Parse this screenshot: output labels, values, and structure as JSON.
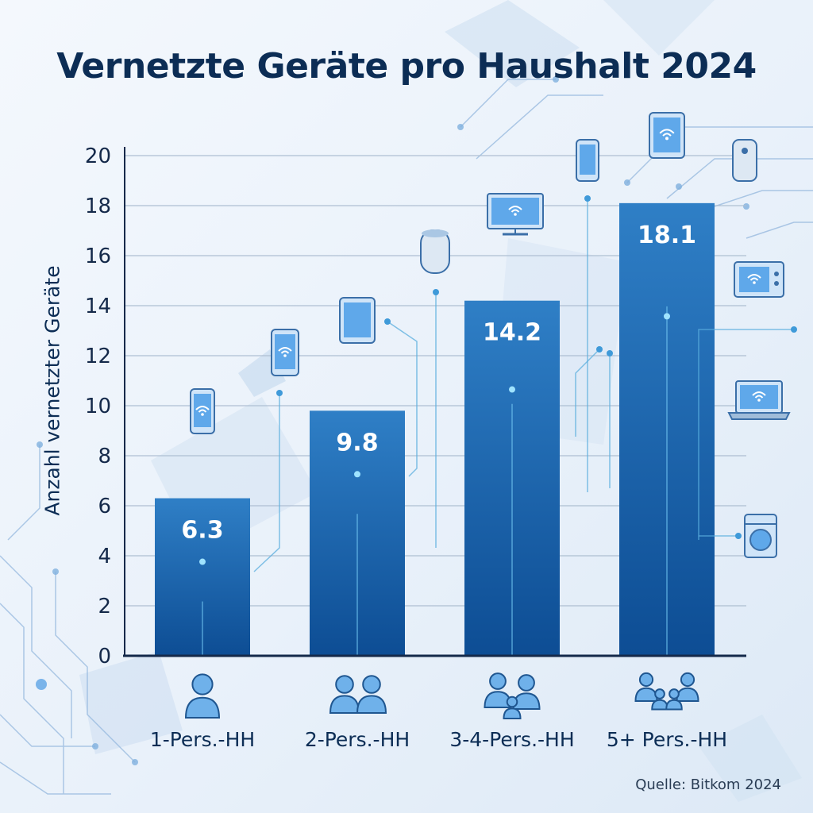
{
  "chart_data": {
    "type": "bar",
    "title": "Vernetzte Geräte pro Haushalt 2024",
    "ylabel": "Anzahl vernetzter Geräte",
    "xlabel": "",
    "categories": [
      "1-Pers.-HH",
      "2-Pers.-HH",
      "3-4-Pers.-HH",
      "5+ Pers.-HH"
    ],
    "values": [
      6.3,
      9.8,
      14.2,
      18.1
    ],
    "value_labels": [
      "6.3",
      "9.8",
      "14.2",
      "18.1"
    ],
    "ylim": [
      0,
      20
    ],
    "yticks": [
      0,
      2,
      4,
      6,
      8,
      10,
      12,
      14,
      16,
      18,
      20
    ],
    "grid": true,
    "legend": "none",
    "colors": {
      "bar_top": "#2f7fc6",
      "bar_bottom": "#0d4d94",
      "title": "#0c2d55",
      "grid": "#aebfd2",
      "icon": "#3d8ed6"
    },
    "category_icons": [
      "single-person-icon",
      "couple-icon",
      "family-icon",
      "large-family-icon"
    ],
    "device_icons": [
      "smartphone-icon",
      "smartphone-icon",
      "tablet-icon",
      "smart-speaker-icon",
      "tv-icon",
      "smartphone-icon",
      "tablet-icon",
      "smart-speaker-icon",
      "microwave-icon",
      "laptop-icon",
      "washing-machine-icon"
    ]
  },
  "source": "Quelle: Bitkom 2024"
}
